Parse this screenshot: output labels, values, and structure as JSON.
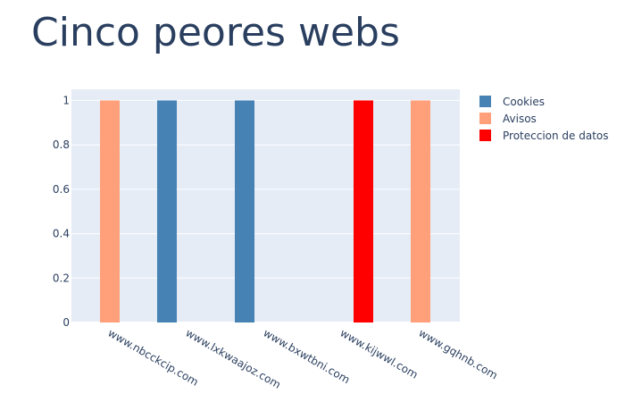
{
  "chart_data": {
    "type": "bar",
    "title": "Cinco peores webs",
    "xlabel": "",
    "ylabel": "",
    "ylim": [
      0,
      1.05
    ],
    "yticks": [
      0,
      0.2,
      0.4,
      0.6,
      0.8,
      1
    ],
    "ytick_labels": [
      "0",
      "0.2",
      "0.4",
      "0.6",
      "0.8",
      "1"
    ],
    "categories": [
      "www.nbcckcip.com",
      "www.lxkwaajoz.com",
      "www.bxwtbni.com",
      "www.kijwwl.com",
      "www.gqhnb.com"
    ],
    "series": [
      {
        "name": "Cookies",
        "color": "#4682b4",
        "values": [
          0,
          1,
          1,
          0,
          0
        ]
      },
      {
        "name": "Avisos",
        "color": "#ffa07a",
        "values": [
          1,
          0,
          0,
          0,
          1
        ]
      },
      {
        "name": "Proteccion de datos",
        "color": "#ff0000",
        "values": [
          0,
          0,
          0,
          1,
          0
        ]
      }
    ],
    "bar_offsets": [
      [
        1,
        0
      ],
      [
        0,
        0
      ],
      [
        0,
        0
      ],
      [
        2,
        0
      ],
      [
        1,
        0
      ]
    ],
    "grid": true,
    "legend_position": "top-right",
    "colors": {
      "plot_background": "#e5ecf6",
      "gridline": "#ffffff",
      "title": "#2a3f5f",
      "tick_label": "#2a3f5f"
    }
  }
}
